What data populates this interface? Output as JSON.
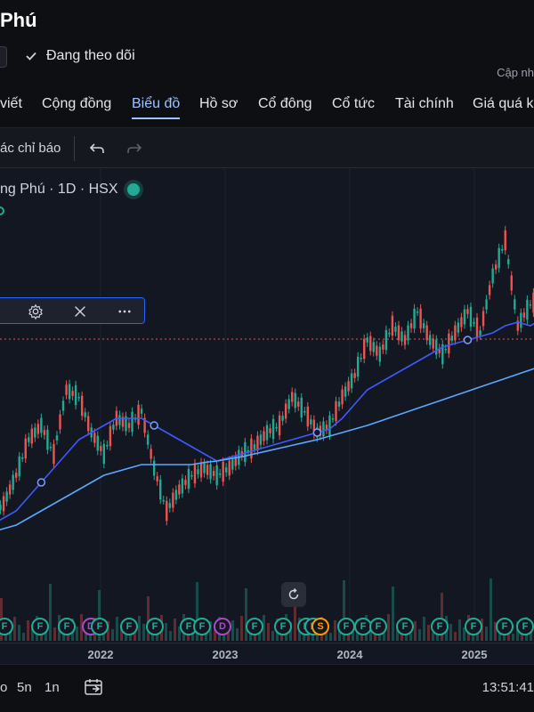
{
  "header": {
    "title": "Phú",
    "follow_label": "Đang theo dõi",
    "update_label": "Cập nh"
  },
  "tabs": [
    "viết",
    "Cộng đồng",
    "Biểu đồ",
    "Hồ sơ",
    "Cổ đông",
    "Cổ tức",
    "Tài chính",
    "Giá quá kh"
  ],
  "active_tab": "Biểu đồ",
  "toolbar": {
    "indicators_label": "ác chỉ báo"
  },
  "legend": {
    "symbol_text": "ng Phú · 1D · HSX"
  },
  "icons": [
    "check-icon",
    "undo-icon",
    "redo-icon",
    "gear-icon",
    "close-icon",
    "more-icon",
    "reset-icon",
    "calendar-icon"
  ],
  "colors": {
    "accent": "#9ec3ff",
    "status": "#22ab94",
    "ma_fast": "#3d5afe",
    "ma_slow": "#5aa8ff",
    "dividend": "#b046c9",
    "background": "#131722"
  },
  "markers": [
    "F",
    "F",
    "F",
    "D",
    "F",
    "F",
    "F",
    "F",
    "F",
    "D",
    "F",
    "F",
    "F",
    "F",
    "S",
    "F",
    "F",
    "F",
    "F",
    "F",
    "F",
    "F",
    "F"
  ],
  "xaxis": {
    "labels": [
      "2022",
      "2023",
      "2024",
      "2025"
    ]
  },
  "bottom": {
    "ranges": [
      "o",
      "5n",
      "1n"
    ],
    "time": "13:51:41"
  },
  "chart_data": {
    "type": "line",
    "description_series": "price",
    "x": [
      "2021-09",
      "2021-10",
      "2021-11",
      "2021-12",
      "2022-01",
      "2022-02",
      "2022-03",
      "2022-04",
      "2022-05",
      "2022-06",
      "2022-07",
      "2022-08",
      "2022-09",
      "2022-10",
      "2022-11",
      "2022-12",
      "2023-01",
      "2023-02",
      "2023-03",
      "2023-04",
      "2023-05",
      "2023-06",
      "2023-07",
      "2023-08",
      "2023-09",
      "2023-10",
      "2023-11",
      "2023-12",
      "2024-01",
      "2024-02",
      "2024-03",
      "2024-04",
      "2024-05",
      "2024-06",
      "2024-07",
      "2024-08",
      "2024-09",
      "2024-10",
      "2024-11",
      "2024-12",
      "2025-01",
      "2025-02",
      "2025-03",
      "2025-04",
      "2025-05"
    ],
    "series": [
      {
        "values": [
          21,
          23,
          27,
          32,
          34,
          30,
          39,
          38,
          33,
          30,
          35,
          34,
          36,
          28,
          22,
          25,
          27,
          28,
          27,
          28,
          30,
          31,
          33,
          34,
          38,
          36,
          33,
          34,
          38,
          41,
          46,
          44,
          48,
          46,
          50,
          46,
          44,
          47,
          50,
          47,
          55,
          60,
          48,
          51,
          52
        ]
      },
      {
        "values": [
          20,
          21,
          22,
          24,
          26,
          28,
          30,
          32,
          33,
          34,
          35,
          35,
          35,
          34,
          33,
          32,
          31,
          30,
          29,
          29.5,
          30,
          30.5,
          31,
          31.5,
          32,
          32.5,
          33,
          33.5,
          35,
          37,
          39,
          40,
          41,
          42,
          43,
          44,
          45,
          45.5,
          46,
          46.5,
          47,
          48,
          48.5,
          48,
          49
        ]
      },
      {
        "values": [
          19,
          19.5,
          20,
          21,
          22,
          23,
          24,
          25,
          26,
          27,
          27.5,
          28,
          28.5,
          28.5,
          28.5,
          28.5,
          28.5,
          28.8,
          29,
          29.3,
          29.6,
          30,
          30.4,
          30.8,
          31.2,
          31.6,
          32,
          32.5,
          33,
          33.5,
          34,
          34.6,
          35.2,
          35.8,
          36.4,
          37,
          37.6,
          38.2,
          38.8,
          39.4,
          40,
          40.6,
          41.2,
          41.8,
          42.4
        ]
      }
    ],
    "xlabels_shown": [
      "2022",
      "2023",
      "2024",
      "2025"
    ],
    "grid": true,
    "legend": "none"
  }
}
